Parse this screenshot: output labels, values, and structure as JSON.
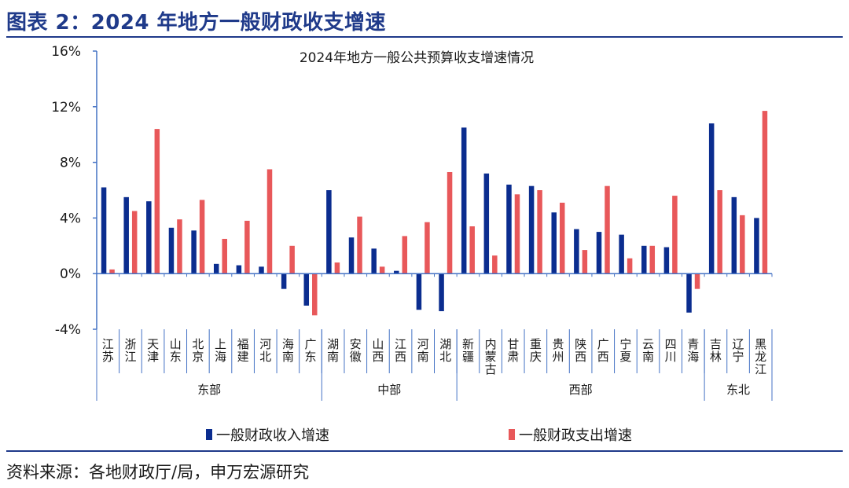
{
  "figure": {
    "title": "图表 2：2024 年地方一般财政收支增速",
    "source": "资料来源：各地财政厅/局，申万宏源研究"
  },
  "colors": {
    "accent": "#1f3a8a",
    "revenue": "#0b2d8f",
    "expenditure": "#e8585a",
    "axis": "#4472c4"
  },
  "chart_data": {
    "type": "bar",
    "title": "2024年地方一般公共预算收支增速情况",
    "ylim": [
      -4,
      16
    ],
    "yticks": [
      "16%",
      "12%",
      "8%",
      "4%",
      "0%",
      "-4%"
    ],
    "ytick_values": [
      16,
      12,
      8,
      4,
      0,
      -4
    ],
    "categories": [
      "江苏",
      "浙江",
      "天津",
      "山东",
      "北京",
      "上海",
      "福建",
      "河北",
      "海南",
      "广东",
      "湖南",
      "安徽",
      "山西",
      "江西",
      "河南",
      "湖北",
      "新疆",
      "内蒙古",
      "甘肃",
      "重庆",
      "贵州",
      "陕西",
      "广西",
      "宁夏",
      "云南",
      "四川",
      "青海",
      "吉林",
      "辽宁",
      "黑龙江"
    ],
    "groups": [
      {
        "name": "东部",
        "count": 10
      },
      {
        "name": "中部",
        "count": 6
      },
      {
        "name": "西部",
        "count": 11
      },
      {
        "name": "东北",
        "count": 3
      }
    ],
    "series": [
      {
        "name": "一般财政收入增速",
        "values": [
          6.2,
          5.5,
          5.2,
          3.3,
          3.1,
          0.7,
          0.6,
          0.5,
          -1.1,
          -2.3,
          6.0,
          2.6,
          1.8,
          0.2,
          -2.6,
          -2.7,
          10.5,
          7.2,
          6.4,
          6.3,
          4.4,
          3.2,
          3.0,
          2.8,
          2.0,
          1.9,
          -2.8,
          10.8,
          5.5,
          4.0
        ]
      },
      {
        "name": "一般财政支出增速",
        "values": [
          0.3,
          4.5,
          10.4,
          3.9,
          5.3,
          2.5,
          3.8,
          7.5,
          2.0,
          -3.0,
          0.8,
          4.1,
          0.5,
          2.7,
          3.7,
          7.3,
          3.4,
          1.3,
          5.7,
          6.0,
          5.1,
          1.7,
          6.3,
          1.1,
          2.0,
          5.6,
          -1.1,
          6.0,
          4.2,
          11.7
        ]
      }
    ],
    "grid": false,
    "legend": "bottom"
  }
}
